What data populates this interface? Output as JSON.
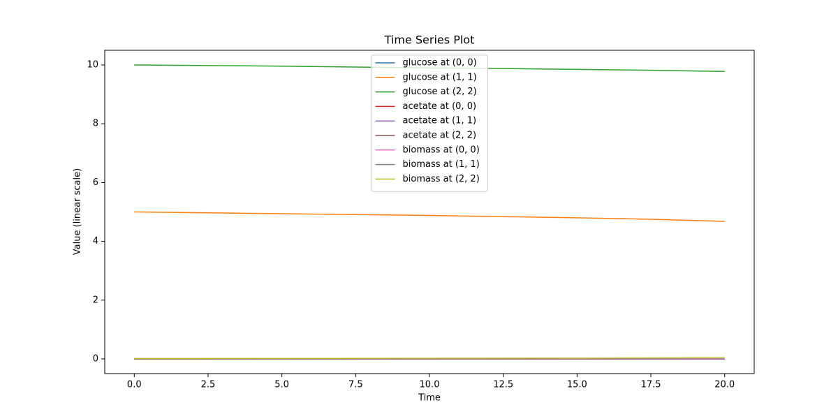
{
  "chart_data": {
    "type": "line",
    "title": "Time Series Plot",
    "x_label": "Time",
    "y_label": "Value (linear scale)",
    "x": [
      0,
      2.5,
      5,
      7.5,
      10,
      12.5,
      15,
      17.5,
      20
    ],
    "series": [
      {
        "name": "glucose at (0, 0)",
        "color": "#1f77b4",
        "values": [
          0,
          0,
          0,
          0,
          0,
          0,
          0,
          0,
          0
        ]
      },
      {
        "name": "glucose at (1, 1)",
        "color": "#ff7f0e",
        "values": [
          5.0,
          4.97,
          4.94,
          4.91,
          4.88,
          4.84,
          4.8,
          4.75,
          4.68
        ]
      },
      {
        "name": "glucose at (2, 2)",
        "color": "#2ca02c",
        "values": [
          10.0,
          9.98,
          9.96,
          9.93,
          9.9,
          9.88,
          9.85,
          9.82,
          9.78
        ]
      },
      {
        "name": "acetate at (0, 0)",
        "color": "#d62728",
        "values": [
          0,
          0,
          0,
          0,
          0,
          0,
          0,
          0,
          0
        ]
      },
      {
        "name": "acetate at (1, 1)",
        "color": "#9467bd",
        "values": [
          0,
          0.001,
          0.002,
          0.003,
          0.004,
          0.005,
          0.006,
          0.008,
          0.01
        ]
      },
      {
        "name": "acetate at (2, 2)",
        "color": "#8c564b",
        "values": [
          0,
          0.001,
          0.002,
          0.004,
          0.005,
          0.007,
          0.009,
          0.011,
          0.013
        ]
      },
      {
        "name": "biomass at (0, 0)",
        "color": "#e377c2",
        "values": [
          0.01,
          0.01,
          0.01,
          0.01,
          0.01,
          0.01,
          0.01,
          0.01,
          0.01
        ]
      },
      {
        "name": "biomass at (1, 1)",
        "color": "#7f7f7f",
        "values": [
          0.01,
          0.012,
          0.014,
          0.016,
          0.018,
          0.02,
          0.022,
          0.025,
          0.028
        ]
      },
      {
        "name": "biomass at (2, 2)",
        "color": "#bcbd22",
        "values": [
          0.01,
          0.013,
          0.016,
          0.019,
          0.022,
          0.026,
          0.03,
          0.035,
          0.04
        ]
      }
    ],
    "xlim": [
      -1,
      21
    ],
    "xticks": [
      {
        "value": 0,
        "label": "0.0"
      },
      {
        "value": 2.5,
        "label": "2.5"
      },
      {
        "value": 5,
        "label": "5.0"
      },
      {
        "value": 7.5,
        "label": "7.5"
      },
      {
        "value": 10,
        "label": "10.0"
      },
      {
        "value": 12.5,
        "label": "12.5"
      },
      {
        "value": 15,
        "label": "15.0"
      },
      {
        "value": 17.5,
        "label": "17.5"
      },
      {
        "value": 20,
        "label": "20.0"
      }
    ],
    "ylim": [
      -0.5,
      10.5
    ],
    "yticks": [
      0,
      2,
      4,
      6,
      8,
      10
    ],
    "grid": false,
    "legend": "upper center"
  }
}
